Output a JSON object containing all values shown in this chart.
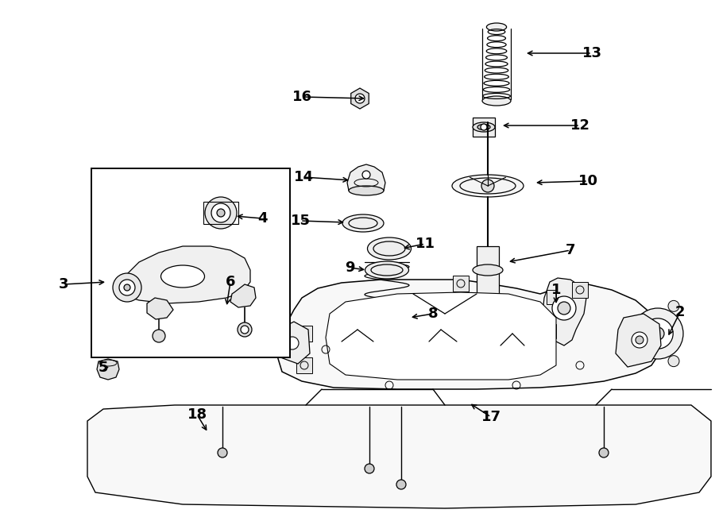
{
  "bg": "#ffffff",
  "lc": "#000000",
  "lw": 0.9,
  "fig_w": 9.0,
  "fig_h": 6.61,
  "dpi": 100
}
